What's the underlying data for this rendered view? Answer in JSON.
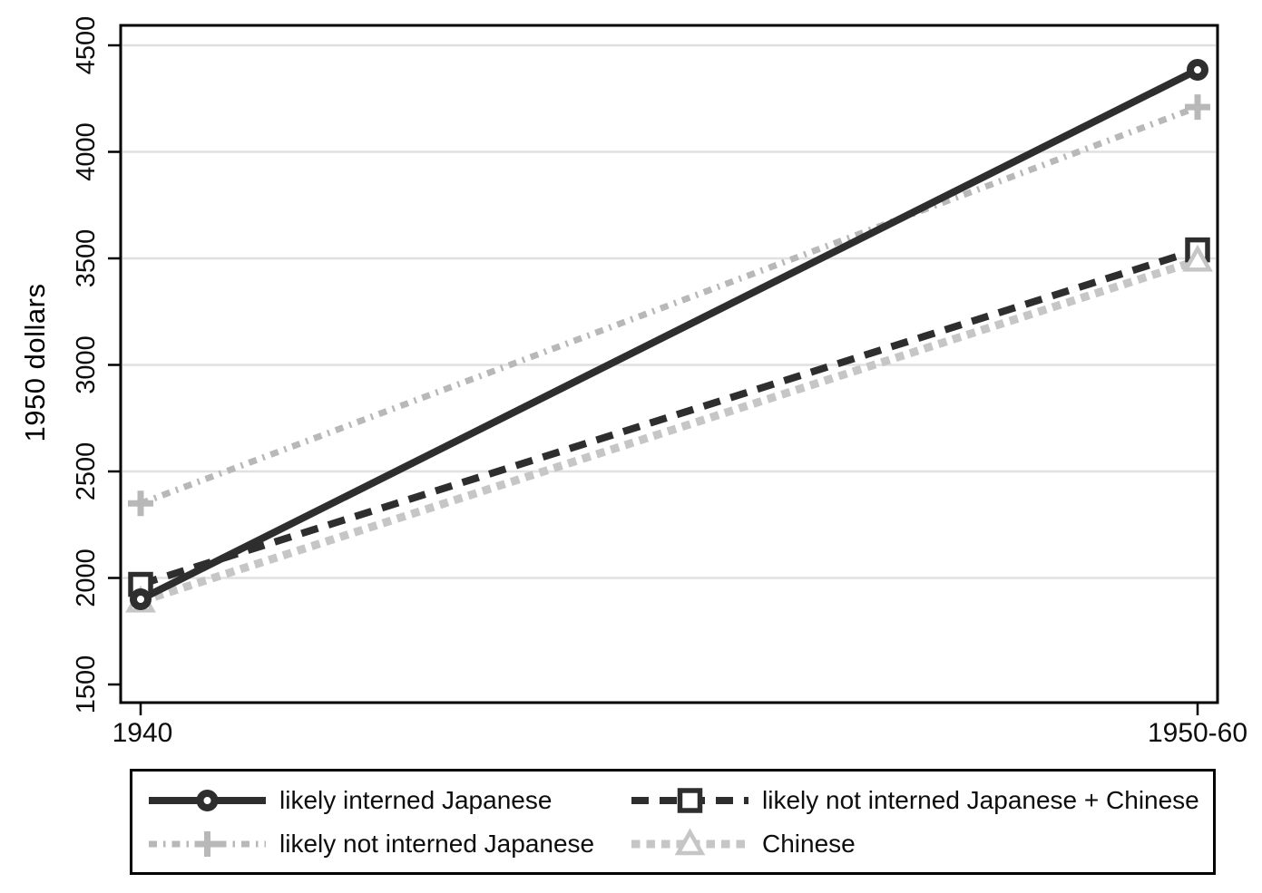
{
  "chart_data": {
    "type": "line",
    "title": "",
    "ylabel": "1950 dollars",
    "xlabel": "",
    "categories": [
      "1940",
      "1950-60"
    ],
    "y_ticks": [
      1500,
      2000,
      2500,
      3000,
      3500,
      4000,
      4500
    ],
    "ylim": [
      1415,
      4600
    ],
    "grid": "horizontal",
    "legend_position": "bottom-box-2x2",
    "colors": {
      "grid": "#e0e0e0",
      "axis": "#000000",
      "dark": "#2e2e2e",
      "gray": "#b8b8b8",
      "light_gray": "#c6c6c6"
    },
    "series": [
      {
        "name": "likely interned Japanese",
        "marker": "circle",
        "line_style": "solid",
        "color": "#2e2e2e",
        "values": [
          1900,
          4385
        ]
      },
      {
        "name": "likely not interned Japanese + Chinese",
        "marker": "square",
        "line_style": "dashed",
        "color": "#2e2e2e",
        "values": [
          1970,
          3540
        ]
      },
      {
        "name": "likely not interned Japanese",
        "marker": "plus",
        "line_style": "dash-dot",
        "color": "#b8b8b8",
        "values": [
          2350,
          4210
        ]
      },
      {
        "name": "Chinese",
        "marker": "triangle",
        "line_style": "dotted",
        "color": "#c6c6c6",
        "values": [
          1890,
          3490
        ]
      }
    ]
  }
}
